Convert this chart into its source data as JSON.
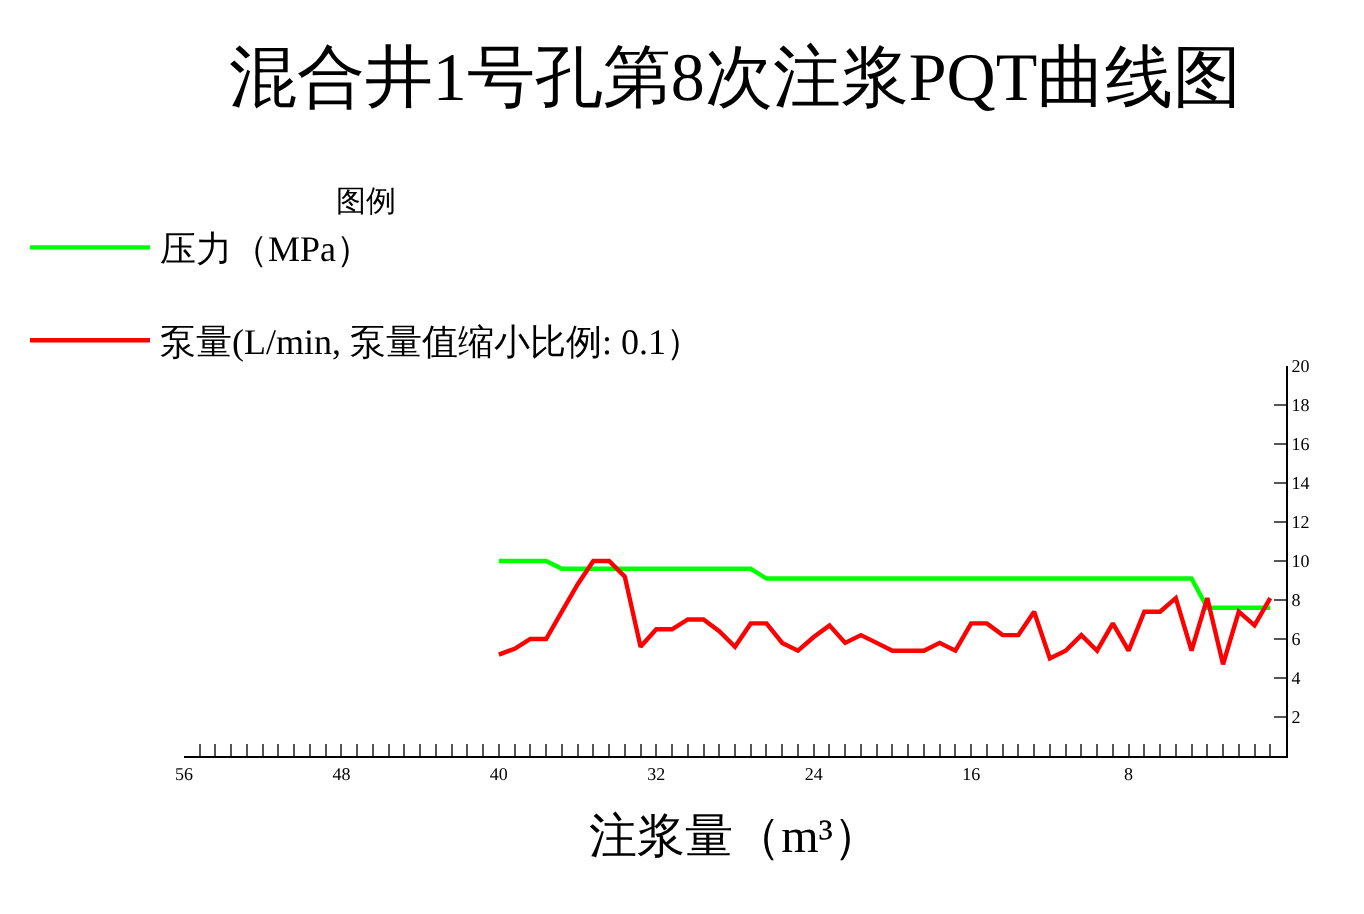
{
  "chart_data": {
    "type": "line",
    "title": "混合井1号孔第8次注浆PQT曲线图",
    "xlabel": "注浆量（m³）",
    "legend_title": "图例",
    "legend": "top left",
    "grid": false,
    "marker": "none",
    "line_style": "solid",
    "xlim": [
      56,
      0
    ],
    "ylim": [
      0,
      20
    ],
    "xticks": [
      {
        "value": 0.8,
        "label": null
      },
      {
        "value": 1.6,
        "label": null
      },
      {
        "value": 2.4,
        "label": null
      },
      {
        "value": 3.2,
        "label": null
      },
      {
        "value": 4,
        "label": null
      },
      {
        "value": 4.8,
        "label": null
      },
      {
        "value": 5.6,
        "label": null
      },
      {
        "value": 6.4,
        "label": null
      },
      {
        "value": 7.2,
        "label": null
      },
      8,
      {
        "value": 8.8,
        "label": null
      },
      {
        "value": 9.6,
        "label": null
      },
      {
        "value": 10.4,
        "label": null
      },
      {
        "value": 11.2,
        "label": null
      },
      {
        "value": 12,
        "label": null
      },
      {
        "value": 12.8,
        "label": null
      },
      {
        "value": 13.6,
        "label": null
      },
      {
        "value": 14.4,
        "label": null
      },
      {
        "value": 15.2,
        "label": null
      },
      16,
      {
        "value": 16.8,
        "label": null
      },
      {
        "value": 17.6,
        "label": null
      },
      {
        "value": 18.4,
        "label": null
      },
      {
        "value": 19.2,
        "label": null
      },
      {
        "value": 20,
        "label": null
      },
      {
        "value": 20.8,
        "label": null
      },
      {
        "value": 21.6,
        "label": null
      },
      {
        "value": 22.4,
        "label": null
      },
      {
        "value": 23.2,
        "label": null
      },
      24,
      {
        "value": 24.8,
        "label": null
      },
      {
        "value": 25.6,
        "label": null
      },
      {
        "value": 26.4,
        "label": null
      },
      {
        "value": 27.2,
        "label": null
      },
      {
        "value": 28,
        "label": null
      },
      {
        "value": 28.8,
        "label": null
      },
      {
        "value": 29.6,
        "label": null
      },
      {
        "value": 30.4,
        "label": null
      },
      {
        "value": 31.2,
        "label": null
      },
      32,
      {
        "value": 32.8,
        "label": null
      },
      {
        "value": 33.6,
        "label": null
      },
      {
        "value": 34.4,
        "label": null
      },
      {
        "value": 35.2,
        "label": null
      },
      {
        "value": 36,
        "label": null
      },
      {
        "value": 36.8,
        "label": null
      },
      {
        "value": 37.6,
        "label": null
      },
      {
        "value": 38.4,
        "label": null
      },
      {
        "value": 39.2,
        "label": null
      },
      40,
      {
        "value": 40.8,
        "label": null
      },
      {
        "value": 41.6,
        "label": null
      },
      {
        "value": 42.4,
        "label": null
      },
      {
        "value": 43.2,
        "label": null
      },
      {
        "value": 44,
        "label": null
      },
      {
        "value": 44.8,
        "label": null
      },
      {
        "value": 45.6,
        "label": null
      },
      {
        "value": 46.4,
        "label": null
      },
      {
        "value": 47.2,
        "label": null
      },
      48,
      {
        "value": 48.8,
        "label": null
      },
      {
        "value": 49.6,
        "label": null
      },
      {
        "value": 50.4,
        "label": null
      },
      {
        "value": 51.2,
        "label": null
      },
      {
        "value": 52,
        "label": null
      },
      {
        "value": 52.8,
        "label": null
      },
      {
        "value": 53.6,
        "label": null
      },
      {
        "value": 54.4,
        "label": null
      },
      {
        "value": 55.2,
        "label": null
      },
      56
    ],
    "yticks": [
      2,
      4,
      6,
      8,
      10,
      12,
      14,
      16,
      18,
      20
    ],
    "series": [
      {
        "name": "压力（MPa）",
        "color": "#00ff00",
        "x": [
          40,
          37.6,
          36.8,
          27.2,
          26.4,
          4.8,
          4.0,
          0.8
        ],
        "values": [
          10.0,
          10.0,
          9.6,
          9.6,
          9.1,
          9.1,
          7.6,
          7.6
        ]
      },
      {
        "name": "泵量(L/min, 泵量值缩小比例: 0.1）",
        "color": "#ff0000",
        "x": [
          40,
          39.2,
          38.4,
          37.6,
          36.8,
          36,
          35.2,
          34.4,
          33.6,
          32.8,
          32,
          31.2,
          30.4,
          29.6,
          28.8,
          28,
          27.2,
          26.4,
          25.6,
          24.8,
          24,
          23.2,
          22.4,
          21.6,
          20.8,
          20,
          19.2,
          18.4,
          17.6,
          16.8,
          16,
          15.2,
          14.4,
          13.6,
          12.8,
          12,
          11.2,
          10.4,
          9.6,
          8.8,
          8,
          7.2,
          6.4,
          5.6,
          4.8,
          4,
          3.2,
          2.4,
          1.6,
          0.8
        ],
        "values": [
          5.2,
          5.5,
          6.0,
          6.0,
          7.4,
          8.8,
          10.0,
          10.0,
          9.2,
          5.6,
          6.5,
          6.5,
          7.0,
          7.0,
          6.4,
          5.6,
          6.8,
          6.8,
          5.8,
          5.4,
          6.1,
          6.7,
          5.8,
          6.2,
          5.8,
          5.4,
          5.4,
          5.4,
          5.8,
          5.4,
          6.8,
          6.8,
          6.2,
          6.2,
          7.4,
          5.0,
          5.4,
          6.2,
          5.4,
          6.8,
          5.4,
          7.4,
          7.4,
          8.1,
          5.4,
          8.1,
          4.7,
          7.4,
          6.7,
          8.1
        ]
      }
    ]
  }
}
